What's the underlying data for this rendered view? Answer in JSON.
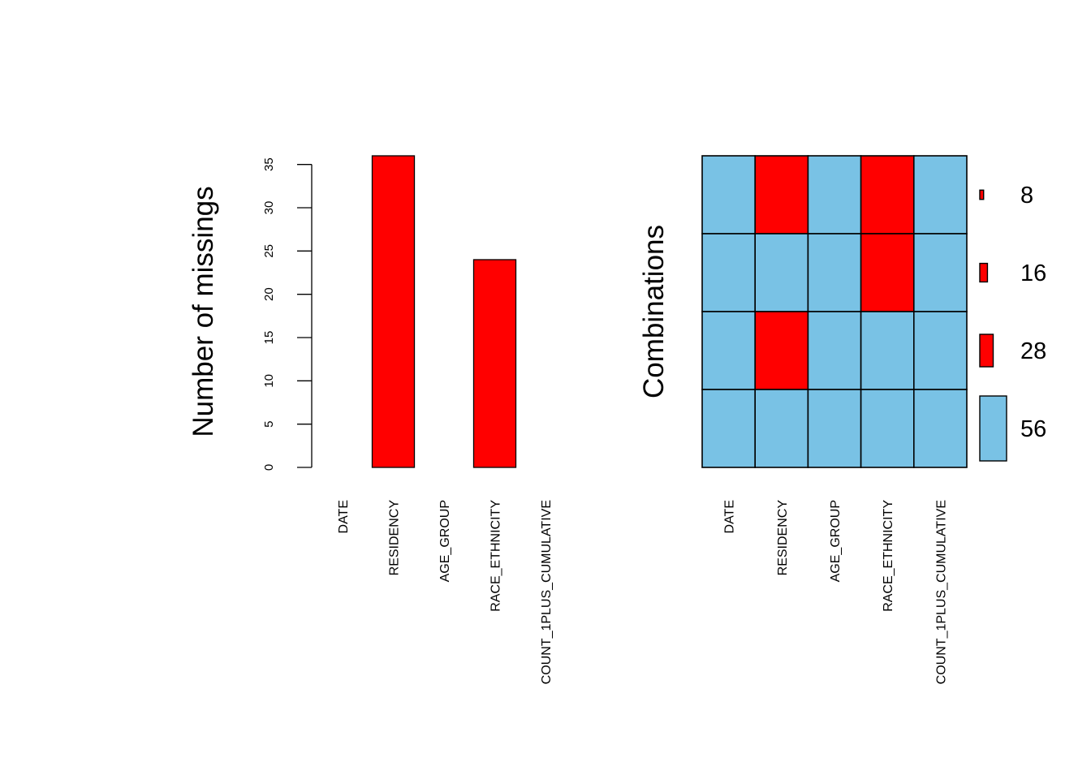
{
  "colors": {
    "missing": "#FF0000",
    "observed": "#79C2E5",
    "stroke": "#000000",
    "background": "#FFFFFF"
  },
  "chart_data": [
    {
      "type": "bar",
      "title": "",
      "xlabel": "",
      "ylabel": "Number of missings",
      "categories": [
        "DATE",
        "RESIDENCY",
        "AGE_GROUP",
        "RACE_ETHNICITY",
        "COUNT_1PLUS_CUMULATIVE"
      ],
      "values": [
        0,
        36,
        0,
        24,
        0
      ],
      "yticks": [
        0,
        5,
        10,
        15,
        20,
        25,
        30,
        35
      ],
      "ylim": [
        0,
        36
      ]
    },
    {
      "type": "heatmap",
      "title": "",
      "ylabel": "Combinations",
      "variables": [
        "DATE",
        "RESIDENCY",
        "AGE_GROUP",
        "RACE_ETHNICITY",
        "COUNT_1PLUS_CUMULATIVE"
      ],
      "combinations": [
        {
          "pattern": [
            false,
            true,
            false,
            true,
            false
          ],
          "count": 8
        },
        {
          "pattern": [
            false,
            false,
            false,
            true,
            false
          ],
          "count": 16
        },
        {
          "pattern": [
            false,
            true,
            false,
            false,
            false
          ],
          "count": 28
        },
        {
          "pattern": [
            false,
            false,
            false,
            false,
            false
          ],
          "count": 56
        }
      ],
      "count_labels": [
        "8",
        "16",
        "28",
        "56"
      ]
    }
  ]
}
